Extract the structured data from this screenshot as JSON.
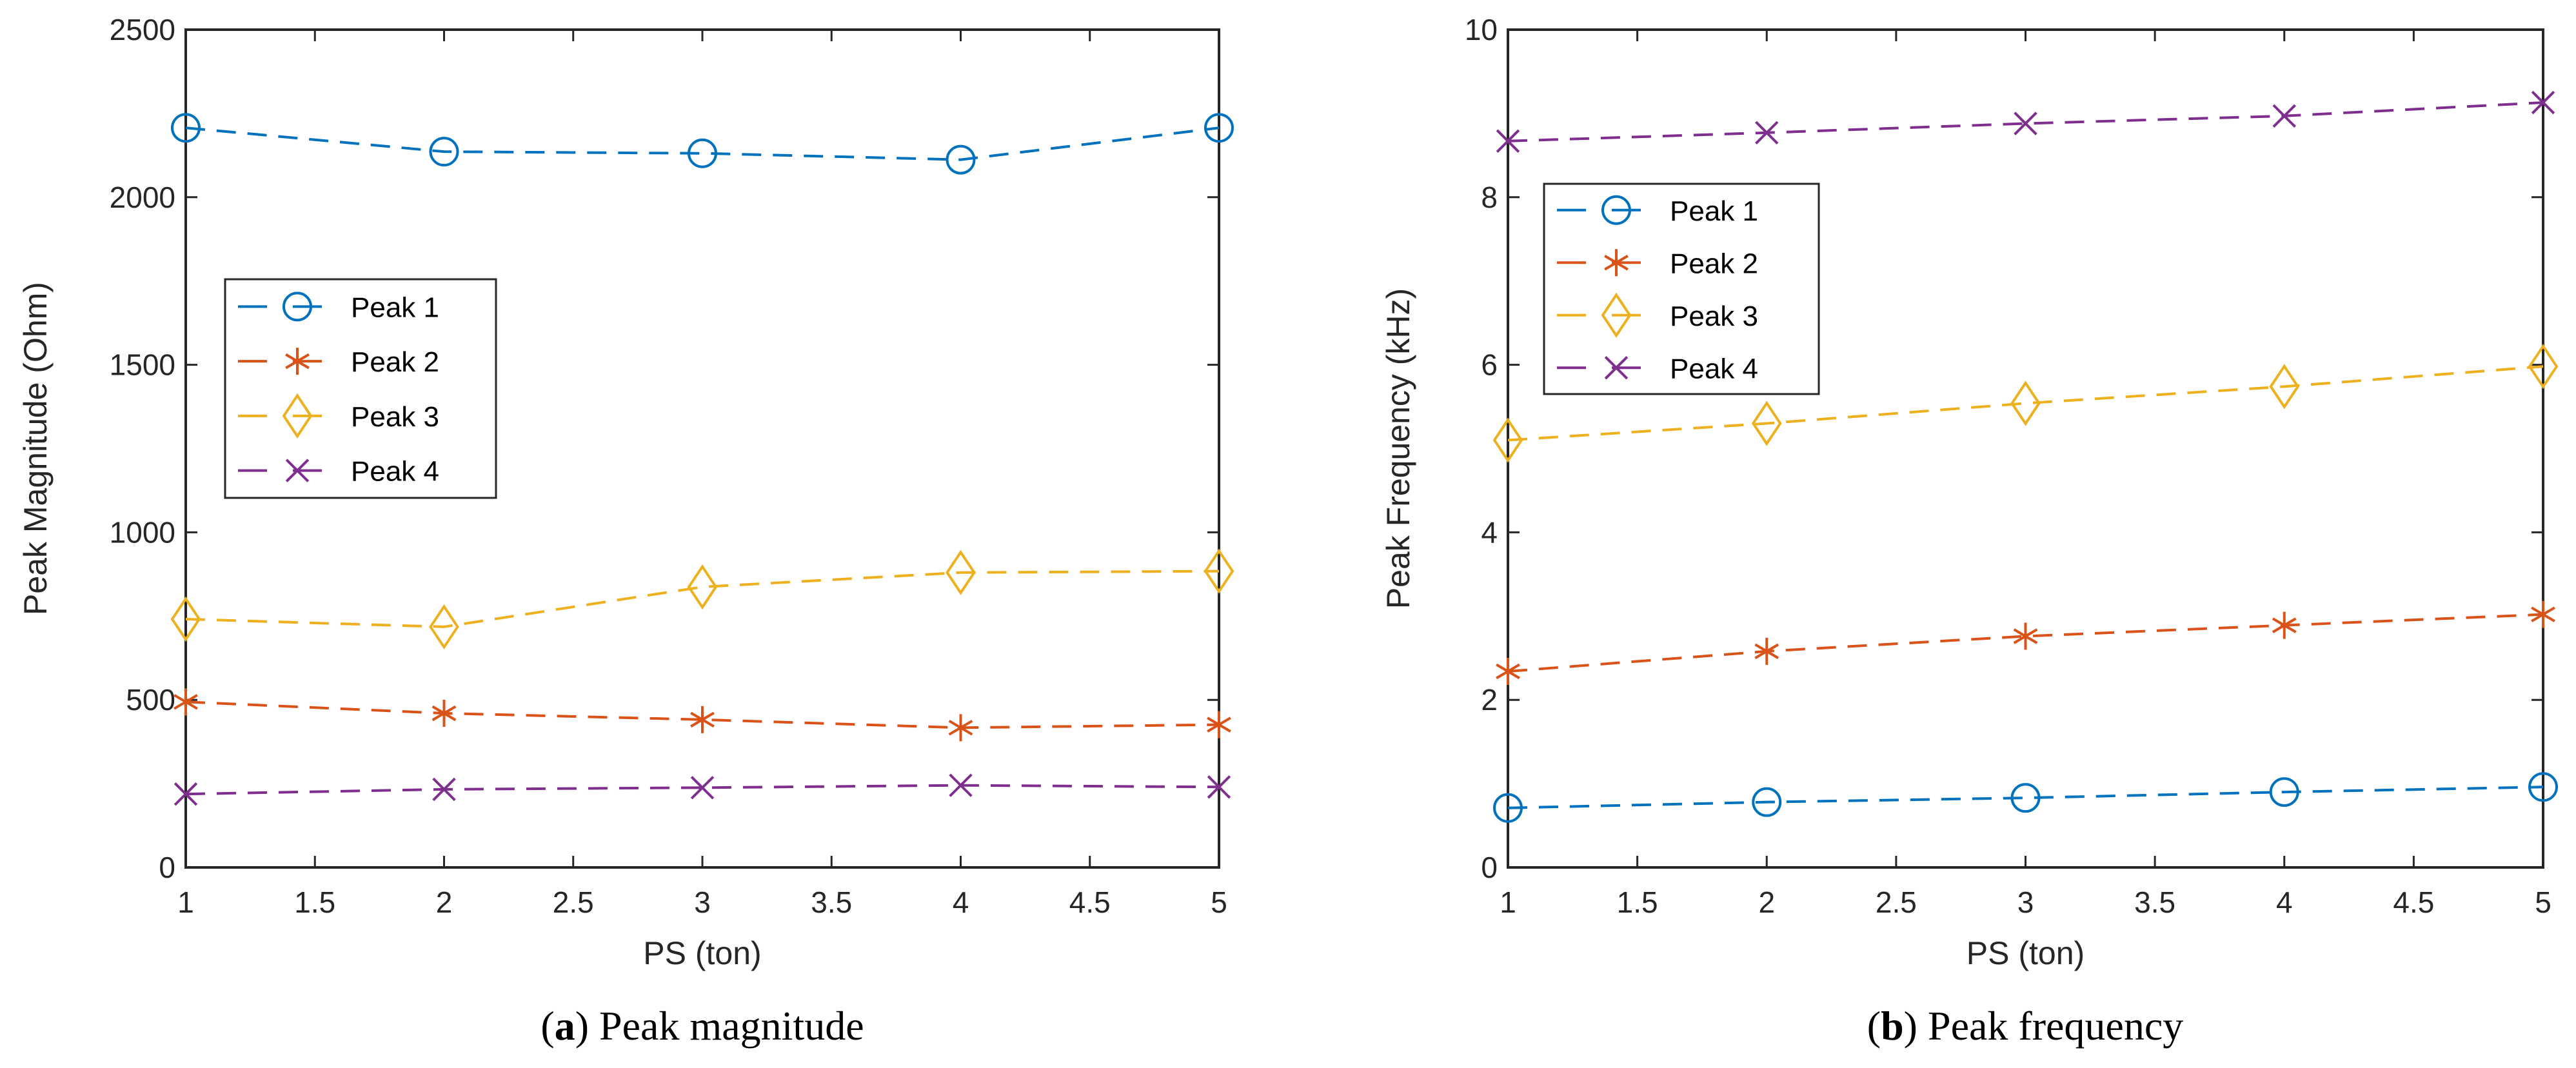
{
  "chart_data": [
    {
      "type": "line",
      "title": "",
      "caption_letter": "a",
      "caption_text": "Peak magnitude",
      "xlabel": "PS (ton)",
      "ylabel": "Peak Magnitude (Ohm)",
      "x": [
        1,
        2,
        3,
        4,
        5
      ],
      "xlim": [
        1,
        5
      ],
      "ylim": [
        0,
        2500
      ],
      "xticks": [
        "1",
        "1.5",
        "2",
        "2.5",
        "3",
        "3.5",
        "4",
        "4.5",
        "5"
      ],
      "yticks": [
        "0",
        "500",
        "1000",
        "1500",
        "2000",
        "2500"
      ],
      "grid": false,
      "legend_position": "center-left",
      "series": [
        {
          "name": "Peak 1",
          "color": "#0072BD",
          "marker": "circle",
          "values": [
            2207,
            2136,
            2131,
            2112,
            2207
          ]
        },
        {
          "name": "Peak 2",
          "color": "#D95319",
          "marker": "asterisk",
          "values": [
            494,
            460,
            441,
            417,
            426
          ]
        },
        {
          "name": "Peak 3",
          "color": "#EDB120",
          "marker": "diamond",
          "values": [
            741,
            718,
            837,
            880,
            884
          ]
        },
        {
          "name": "Peak 4",
          "color": "#7E2F8E",
          "marker": "x",
          "values": [
            219,
            233,
            238,
            245,
            240
          ]
        }
      ]
    },
    {
      "type": "line",
      "title": "",
      "caption_letter": "b",
      "caption_text": "Peak frequency",
      "xlabel": "PS (ton)",
      "ylabel": "Peak Frequency (kHz)",
      "x": [
        1,
        2,
        3,
        4,
        5
      ],
      "xlim": [
        1,
        5
      ],
      "ylim": [
        0,
        10
      ],
      "xticks": [
        "1",
        "1.5",
        "2",
        "2.5",
        "3",
        "3.5",
        "4",
        "4.5",
        "5"
      ],
      "yticks": [
        "0",
        "2",
        "4",
        "6",
        "8",
        "10"
      ],
      "grid": false,
      "legend_position": "upper-left",
      "series": [
        {
          "name": "Peak 1",
          "color": "#0072BD",
          "marker": "circle",
          "values": [
            0.71,
            0.78,
            0.83,
            0.9,
            0.96
          ]
        },
        {
          "name": "Peak 2",
          "color": "#D95319",
          "marker": "asterisk",
          "values": [
            2.34,
            2.58,
            2.76,
            2.89,
            3.02
          ]
        },
        {
          "name": "Peak 3",
          "color": "#EDB120",
          "marker": "diamond",
          "values": [
            5.1,
            5.3,
            5.54,
            5.74,
            5.98
          ]
        },
        {
          "name": "Peak 4",
          "color": "#7E2F8E",
          "marker": "x",
          "values": [
            8.67,
            8.77,
            8.88,
            8.97,
            9.13
          ]
        }
      ]
    }
  ]
}
